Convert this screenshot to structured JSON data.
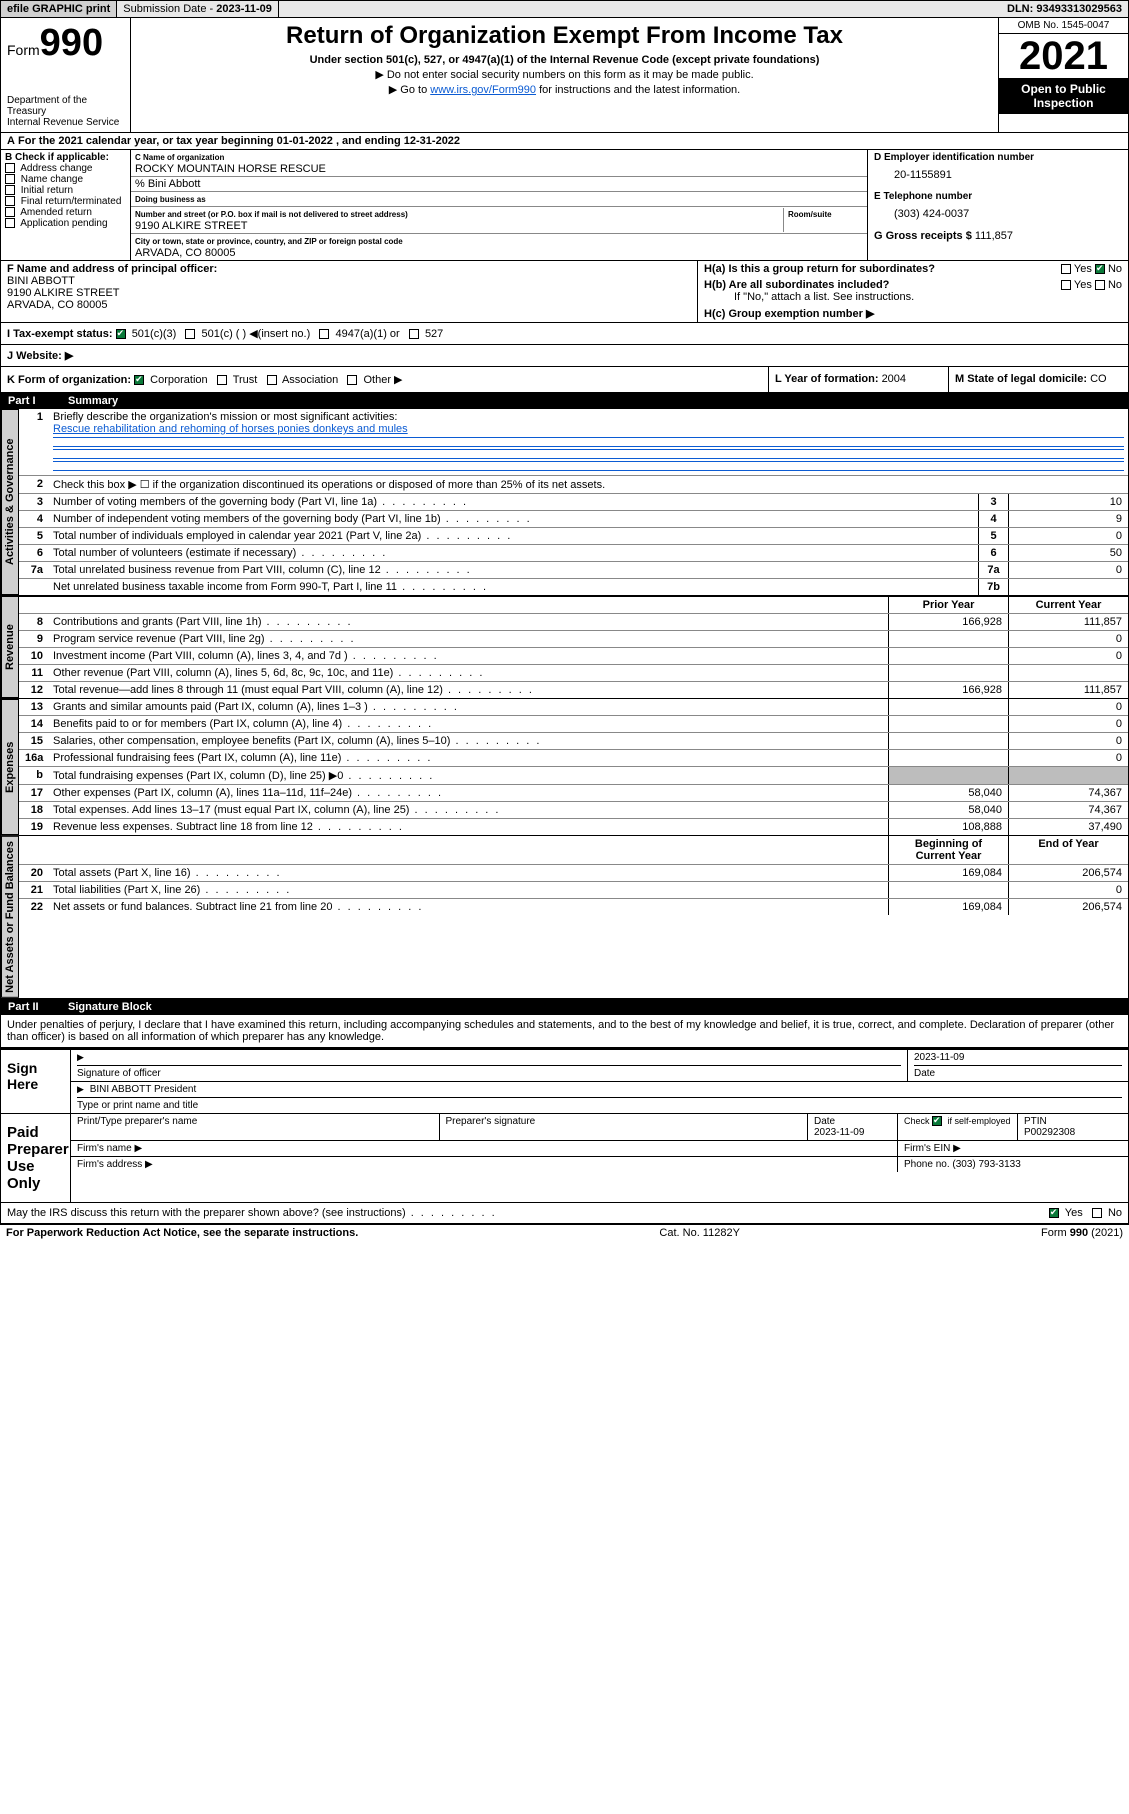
{
  "topbar": {
    "efile": "efile GRAPHIC print",
    "subdate_label": "Submission Date - ",
    "subdate": "2023-11-09",
    "dln_label": "DLN: ",
    "dln": "93493313029563"
  },
  "header": {
    "form_word": "Form",
    "form_num": "990",
    "dept": "Department of the Treasury",
    "irs": "Internal Revenue Service",
    "title": "Return of Organization Exempt From Income Tax",
    "subtitle": "Under section 501(c), 527, or 4947(a)(1) of the Internal Revenue Code (except private foundations)",
    "note1": "▶ Do not enter social security numbers on this form as it may be made public.",
    "note2_pre": "▶ Go to ",
    "note2_link": "www.irs.gov/Form990",
    "note2_post": " for instructions and the latest information.",
    "omb": "OMB No. 1545-0047",
    "year": "2021",
    "open": "Open to Public Inspection"
  },
  "line_a": "For the 2021 calendar year, or tax year beginning 01-01-2022   , and ending 12-31-2022",
  "box_b": {
    "title": "B Check if applicable:",
    "items": [
      "Address change",
      "Name change",
      "Initial return",
      "Final return/terminated",
      "Amended return",
      "Application pending"
    ]
  },
  "box_c": {
    "name_lbl": "C Name of organization",
    "name": "ROCKY MOUNTAIN HORSE RESCUE",
    "care": "% Bini Abbott",
    "dba_lbl": "Doing business as",
    "addr_lbl": "Number and street (or P.O. box if mail is not delivered to street address)",
    "room_lbl": "Room/suite",
    "addr": "9190 ALKIRE STREET",
    "city_lbl": "City or town, state or province, country, and ZIP or foreign postal code",
    "city": "ARVADA, CO  80005"
  },
  "box_d": {
    "lbl": "D Employer identification number",
    "val": "20-1155891"
  },
  "box_e": {
    "lbl": "E Telephone number",
    "val": "(303) 424-0037"
  },
  "box_g": {
    "lbl": "G Gross receipts $ ",
    "val": "111,857"
  },
  "box_f": {
    "lbl": "F Name and address of principal officer:",
    "name": "BINI ABBOTT",
    "addr1": "9190 ALKIRE STREET",
    "addr2": "ARVADA, CO  80005"
  },
  "box_h": {
    "a": "H(a)  Is this a group return for subordinates?",
    "b": "H(b)  Are all subordinates included?",
    "b_note": "If \"No,\" attach a list. See instructions.",
    "c": "H(c)  Group exemption number ▶"
  },
  "line_i": {
    "lbl": "I   Tax-exempt status:",
    "opts": [
      "501(c)(3)",
      "501(c) (  ) ◀(insert no.)",
      "4947(a)(1) or",
      "527"
    ]
  },
  "line_j": "J   Website: ▶",
  "line_k": {
    "lbl": "K Form of organization:",
    "opts": [
      "Corporation",
      "Trust",
      "Association",
      "Other ▶"
    ]
  },
  "line_l": {
    "lbl": "L Year of formation: ",
    "val": "2004"
  },
  "line_m": {
    "lbl": "M State of legal domicile: ",
    "val": "CO"
  },
  "part1": {
    "label": "Part I",
    "title": "Summary"
  },
  "tabs": {
    "gov": "Activities & Governance",
    "rev": "Revenue",
    "exp": "Expenses",
    "net": "Net Assets or Fund Balances"
  },
  "summary": {
    "l1": "Briefly describe the organization's mission or most significant activities:",
    "l1_txt": "Rescue rehabilitation and rehoming of horses ponies donkeys and mules",
    "l2": "Check this box ▶ ☐  if the organization discontinued its operations or disposed of more than 25% of its net assets.",
    "rows_gov": [
      {
        "n": "3",
        "t": "Number of voting members of the governing body (Part VI, line 1a)",
        "b": "3",
        "v": "10"
      },
      {
        "n": "4",
        "t": "Number of independent voting members of the governing body (Part VI, line 1b)",
        "b": "4",
        "v": "9"
      },
      {
        "n": "5",
        "t": "Total number of individuals employed in calendar year 2021 (Part V, line 2a)",
        "b": "5",
        "v": "0"
      },
      {
        "n": "6",
        "t": "Total number of volunteers (estimate if necessary)",
        "b": "6",
        "v": "50"
      },
      {
        "n": "7a",
        "t": "Total unrelated business revenue from Part VIII, column (C), line 12",
        "b": "7a",
        "v": "0"
      },
      {
        "n": "",
        "t": "Net unrelated business taxable income from Form 990-T, Part I, line 11",
        "b": "7b",
        "v": ""
      }
    ],
    "col_prior": "Prior Year",
    "col_curr": "Current Year",
    "rows_rev": [
      {
        "n": "8",
        "t": "Contributions and grants (Part VIII, line 1h)",
        "p": "166,928",
        "c": "111,857"
      },
      {
        "n": "9",
        "t": "Program service revenue (Part VIII, line 2g)",
        "p": "",
        "c": "0"
      },
      {
        "n": "10",
        "t": "Investment income (Part VIII, column (A), lines 3, 4, and 7d )",
        "p": "",
        "c": "0"
      },
      {
        "n": "11",
        "t": "Other revenue (Part VIII, column (A), lines 5, 6d, 8c, 9c, 10c, and 11e)",
        "p": "",
        "c": ""
      },
      {
        "n": "12",
        "t": "Total revenue—add lines 8 through 11 (must equal Part VIII, column (A), line 12)",
        "p": "166,928",
        "c": "111,857"
      }
    ],
    "rows_exp": [
      {
        "n": "13",
        "t": "Grants and similar amounts paid (Part IX, column (A), lines 1–3 )",
        "p": "",
        "c": "0"
      },
      {
        "n": "14",
        "t": "Benefits paid to or for members (Part IX, column (A), line 4)",
        "p": "",
        "c": "0"
      },
      {
        "n": "15",
        "t": "Salaries, other compensation, employee benefits (Part IX, column (A), lines 5–10)",
        "p": "",
        "c": "0"
      },
      {
        "n": "16a",
        "t": "Professional fundraising fees (Part IX, column (A), line 11e)",
        "p": "",
        "c": "0"
      },
      {
        "n": "b",
        "t": "Total fundraising expenses (Part IX, column (D), line 25) ▶0",
        "p": "grey",
        "c": "grey"
      },
      {
        "n": "17",
        "t": "Other expenses (Part IX, column (A), lines 11a–11d, 11f–24e)",
        "p": "58,040",
        "c": "74,367"
      },
      {
        "n": "18",
        "t": "Total expenses. Add lines 13–17 (must equal Part IX, column (A), line 25)",
        "p": "58,040",
        "c": "74,367"
      },
      {
        "n": "19",
        "t": "Revenue less expenses. Subtract line 18 from line 12",
        "p": "108,888",
        "c": "37,490"
      }
    ],
    "col_beg": "Beginning of Current Year",
    "col_end": "End of Year",
    "rows_net": [
      {
        "n": "20",
        "t": "Total assets (Part X, line 16)",
        "p": "169,084",
        "c": "206,574"
      },
      {
        "n": "21",
        "t": "Total liabilities (Part X, line 26)",
        "p": "",
        "c": "0"
      },
      {
        "n": "22",
        "t": "Net assets or fund balances. Subtract line 21 from line 20",
        "p": "169,084",
        "c": "206,574"
      }
    ]
  },
  "part2": {
    "label": "Part II",
    "title": "Signature Block"
  },
  "sig": {
    "decl": "Under penalties of perjury, I declare that I have examined this return, including accompanying schedules and statements, and to the best of my knowledge and belief, it is true, correct, and complete. Declaration of preparer (other than officer) is based on all information of which preparer has any knowledge.",
    "sign_here": "Sign Here",
    "sig_officer": "Signature of officer",
    "date": "Date",
    "date_val": "2023-11-09",
    "name_title": "BINI ABBOTT  President",
    "name_title_lbl": "Type or print name and title",
    "paid": "Paid Preparer Use Only",
    "prep_name": "Print/Type preparer's name",
    "prep_sig": "Preparer's signature",
    "prep_date": "Date",
    "prep_date_val": "2023-11-09",
    "check_self": "Check ☑ if self-employed",
    "ptin_lbl": "PTIN",
    "ptin": "P00292308",
    "firm_name": "Firm's name    ▶",
    "firm_ein": "Firm's EIN ▶",
    "firm_addr": "Firm's address ▶",
    "phone": "Phone no. (303) 793-3133",
    "discuss": "May the IRS discuss this return with the preparer shown above? (see instructions)",
    "yes": "Yes",
    "no": "No"
  },
  "footer": {
    "pra": "For Paperwork Reduction Act Notice, see the separate instructions.",
    "cat": "Cat. No. 11282Y",
    "form": "Form 990 (2021)"
  }
}
